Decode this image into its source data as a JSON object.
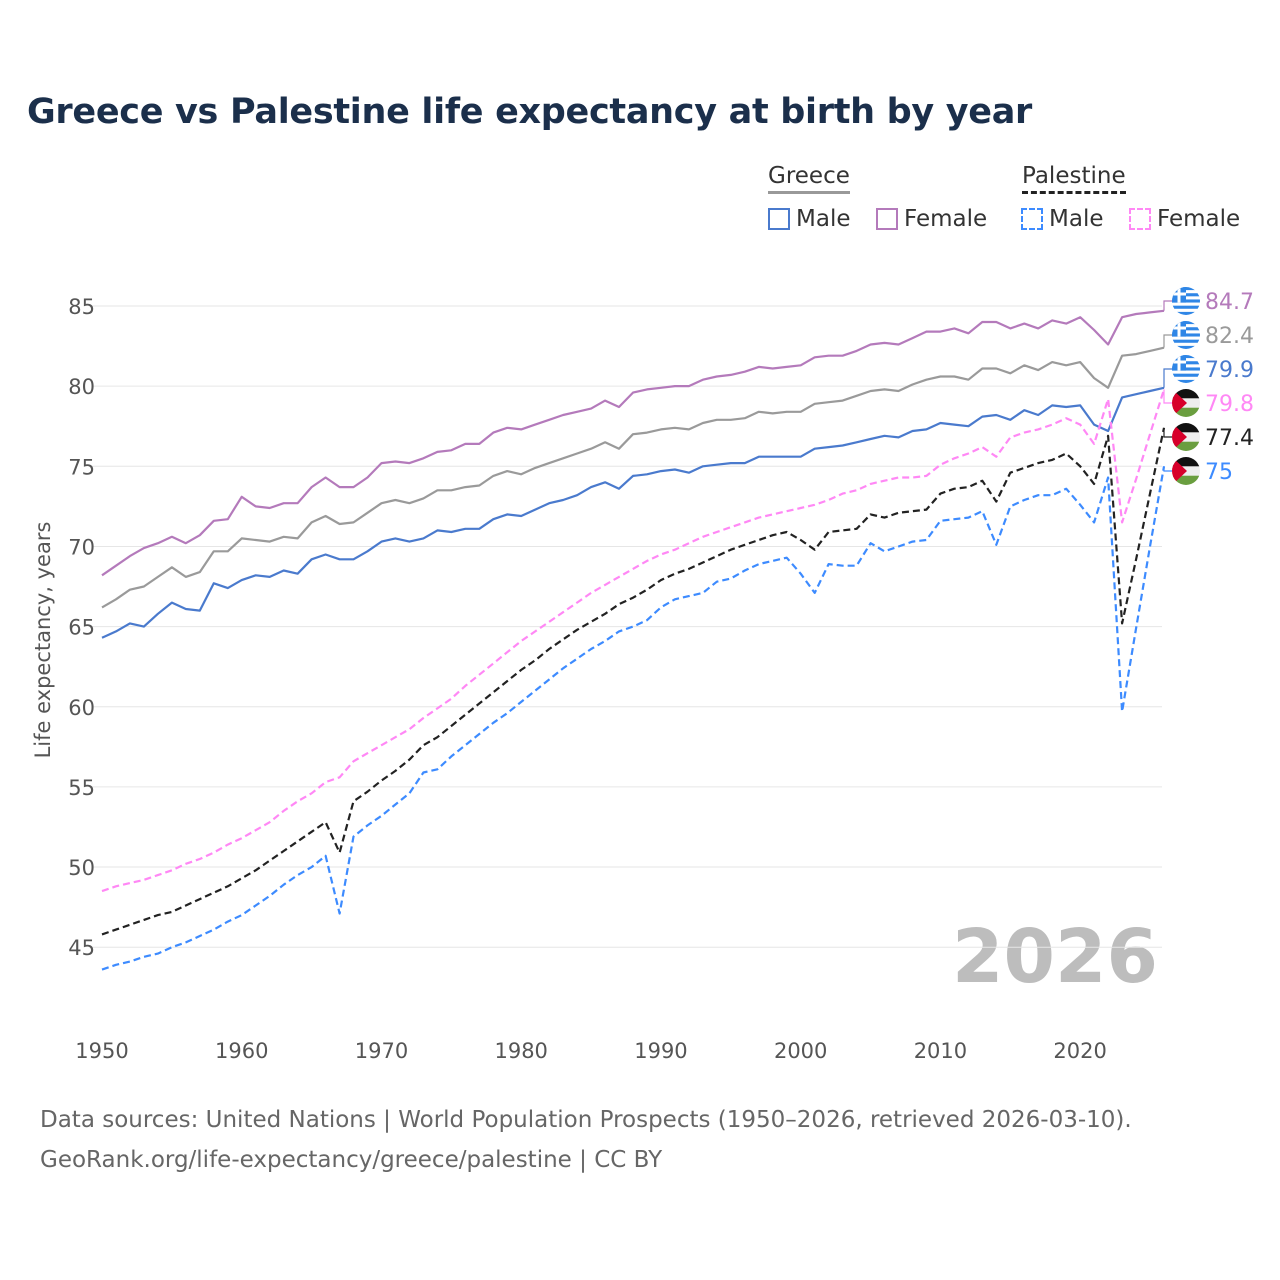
{
  "chart_data": {
    "type": "line",
    "title": "Greece vs Palestine life expectancy at birth by year",
    "xlabel": "",
    "ylabel": "Life expectancy, years",
    "xlim": [
      1950,
      2026
    ],
    "ylim": [
      42,
      87
    ],
    "x_ticks": [
      "1950",
      "1960",
      "1970",
      "1980",
      "1990",
      "2000",
      "2010",
      "2020"
    ],
    "y_ticks": [
      "45",
      "50",
      "55",
      "60",
      "65",
      "70",
      "75",
      "80",
      "85"
    ],
    "grid": true,
    "year_watermark": "2026",
    "legend": {
      "placement": "top-right",
      "groups": [
        {
          "country": "Greece",
          "items": [
            "Male",
            "Female"
          ]
        },
        {
          "country": "Palestine",
          "items": [
            "Male",
            "Female"
          ]
        }
      ]
    },
    "x_start": 1950,
    "series": [
      {
        "name": "Greece Female",
        "country": "Greece",
        "color": "#b47abb",
        "dashed": false,
        "end_label": "84.7",
        "values": [
          68.2,
          68.8,
          69.4,
          69.9,
          70.2,
          70.6,
          70.2,
          70.7,
          71.6,
          71.7,
          73.1,
          72.5,
          72.4,
          72.7,
          72.7,
          73.7,
          74.3,
          73.7,
          73.7,
          74.3,
          75.2,
          75.3,
          75.2,
          75.5,
          75.9,
          76.0,
          76.4,
          76.4,
          77.1,
          77.4,
          77.3,
          77.6,
          77.9,
          78.2,
          78.4,
          78.6,
          79.1,
          78.7,
          79.6,
          79.8,
          79.9,
          80.0,
          80.0,
          80.4,
          80.6,
          80.7,
          80.9,
          81.2,
          81.1,
          81.2,
          81.3,
          81.8,
          81.9,
          81.9,
          82.2,
          82.6,
          82.7,
          82.6,
          83.0,
          83.4,
          83.4,
          83.6,
          83.3,
          84.0,
          84.0,
          83.6,
          83.9,
          83.6,
          84.1,
          83.9,
          84.3,
          83.5,
          82.6,
          84.3,
          84.5,
          84.6,
          84.7
        ]
      },
      {
        "name": "Greece Total",
        "country": "Greece",
        "color": "#9a9a9a",
        "dashed": false,
        "end_label": "82.4",
        "values": [
          66.2,
          66.7,
          67.3,
          67.5,
          68.1,
          68.7,
          68.1,
          68.4,
          69.7,
          69.7,
          70.5,
          70.4,
          70.3,
          70.6,
          70.5,
          71.5,
          71.9,
          71.4,
          71.5,
          72.1,
          72.7,
          72.9,
          72.7,
          73.0,
          73.5,
          73.5,
          73.7,
          73.8,
          74.4,
          74.7,
          74.5,
          74.9,
          75.2,
          75.5,
          75.8,
          76.1,
          76.5,
          76.1,
          77.0,
          77.1,
          77.3,
          77.4,
          77.3,
          77.7,
          77.9,
          77.9,
          78.0,
          78.4,
          78.3,
          78.4,
          78.4,
          78.9,
          79.0,
          79.1,
          79.4,
          79.7,
          79.8,
          79.7,
          80.1,
          80.4,
          80.6,
          80.6,
          80.4,
          81.1,
          81.1,
          80.8,
          81.3,
          81.0,
          81.5,
          81.3,
          81.5,
          80.5,
          79.9,
          81.9,
          82.0,
          82.2,
          82.4
        ]
      },
      {
        "name": "Greece Male",
        "country": "Greece",
        "color": "#4a7acd",
        "dashed": false,
        "end_label": "79.9",
        "values": [
          64.3,
          64.7,
          65.2,
          65.0,
          65.8,
          66.5,
          66.1,
          66.0,
          67.7,
          67.4,
          67.9,
          68.2,
          68.1,
          68.5,
          68.3,
          69.2,
          69.5,
          69.2,
          69.2,
          69.7,
          70.3,
          70.5,
          70.3,
          70.5,
          71.0,
          70.9,
          71.1,
          71.1,
          71.7,
          72.0,
          71.9,
          72.3,
          72.7,
          72.9,
          73.2,
          73.7,
          74.0,
          73.6,
          74.4,
          74.5,
          74.7,
          74.8,
          74.6,
          75.0,
          75.1,
          75.2,
          75.2,
          75.6,
          75.6,
          75.6,
          75.6,
          76.1,
          76.2,
          76.3,
          76.5,
          76.7,
          76.9,
          76.8,
          77.2,
          77.3,
          77.7,
          77.6,
          77.5,
          78.1,
          78.2,
          77.9,
          78.5,
          78.2,
          78.8,
          78.7,
          78.8,
          77.6,
          77.2,
          79.3,
          79.5,
          79.7,
          79.9
        ]
      },
      {
        "name": "Palestine Female",
        "country": "Palestine",
        "color": "#ff88f5",
        "dashed": true,
        "end_label": "79.8",
        "values": [
          48.5,
          48.8,
          49.0,
          49.2,
          49.5,
          49.8,
          50.2,
          50.5,
          50.9,
          51.4,
          51.8,
          52.3,
          52.8,
          53.5,
          54.1,
          54.6,
          55.3,
          55.6,
          56.6,
          57.1,
          57.6,
          58.1,
          58.6,
          59.3,
          59.9,
          60.5,
          61.3,
          62.0,
          62.7,
          63.4,
          64.1,
          64.7,
          65.3,
          65.9,
          66.5,
          67.1,
          67.6,
          68.1,
          68.6,
          69.1,
          69.5,
          69.8,
          70.2,
          70.6,
          70.9,
          71.2,
          71.5,
          71.8,
          72.0,
          72.2,
          72.4,
          72.6,
          72.9,
          73.3,
          73.5,
          73.9,
          74.1,
          74.3,
          74.3,
          74.4,
          75.1,
          75.5,
          75.8,
          76.2,
          75.6,
          76.8,
          77.1,
          77.3,
          77.6,
          78.0,
          77.6,
          76.4,
          79.2,
          71.5,
          74.2,
          77.0,
          79.8
        ]
      },
      {
        "name": "Palestine Total",
        "country": "Palestine",
        "color": "#222222",
        "dashed": true,
        "end_label": "77.4",
        "values": [
          45.8,
          46.1,
          46.4,
          46.7,
          47.0,
          47.2,
          47.6,
          48.0,
          48.4,
          48.8,
          49.3,
          49.8,
          50.4,
          51.0,
          51.6,
          52.2,
          52.8,
          50.9,
          54.1,
          54.7,
          55.4,
          56.0,
          56.7,
          57.6,
          58.1,
          58.8,
          59.5,
          60.2,
          60.9,
          61.6,
          62.3,
          62.9,
          63.6,
          64.2,
          64.8,
          65.3,
          65.8,
          66.4,
          66.8,
          67.3,
          67.9,
          68.3,
          68.6,
          69.0,
          69.4,
          69.8,
          70.1,
          70.4,
          70.7,
          70.9,
          70.4,
          69.8,
          70.9,
          71.0,
          71.1,
          72.0,
          71.8,
          72.1,
          72.2,
          72.3,
          73.3,
          73.6,
          73.7,
          74.1,
          72.8,
          74.6,
          74.9,
          75.2,
          75.4,
          75.8,
          75.0,
          73.9,
          76.9,
          65.2,
          69.2,
          73.3,
          77.4
        ]
      },
      {
        "name": "Palestine Male",
        "country": "Palestine",
        "color": "#3d8bff",
        "dashed": true,
        "end_label": "75",
        "values": [
          43.6,
          43.9,
          44.1,
          44.4,
          44.6,
          45.0,
          45.3,
          45.7,
          46.1,
          46.6,
          47.0,
          47.6,
          48.2,
          48.9,
          49.5,
          50.0,
          50.7,
          47.1,
          51.9,
          52.6,
          53.2,
          53.9,
          54.6,
          55.9,
          56.1,
          56.9,
          57.6,
          58.3,
          59.0,
          59.6,
          60.3,
          61.0,
          61.7,
          62.4,
          63.0,
          63.6,
          64.1,
          64.7,
          65.0,
          65.4,
          66.2,
          66.7,
          66.9,
          67.1,
          67.8,
          68.0,
          68.5,
          68.9,
          69.1,
          69.3,
          68.3,
          67.1,
          68.9,
          68.8,
          68.8,
          70.2,
          69.7,
          70.0,
          70.3,
          70.4,
          71.6,
          71.7,
          71.8,
          72.2,
          70.1,
          72.5,
          72.9,
          73.2,
          73.2,
          73.6,
          72.6,
          71.5,
          74.3,
          59.7,
          64.9,
          70.0,
          75.0
        ]
      }
    ]
  },
  "legend": {
    "greece": "Greece",
    "palestine": "Palestine",
    "male": "Male",
    "female": "Female"
  },
  "footer": {
    "line1": "Data sources: United Nations | World Population Prospects (1950–2026, retrieved 2026-03-10).",
    "line2": "GeoRank.org/life-expectancy/greece/palestine | CC BY"
  }
}
